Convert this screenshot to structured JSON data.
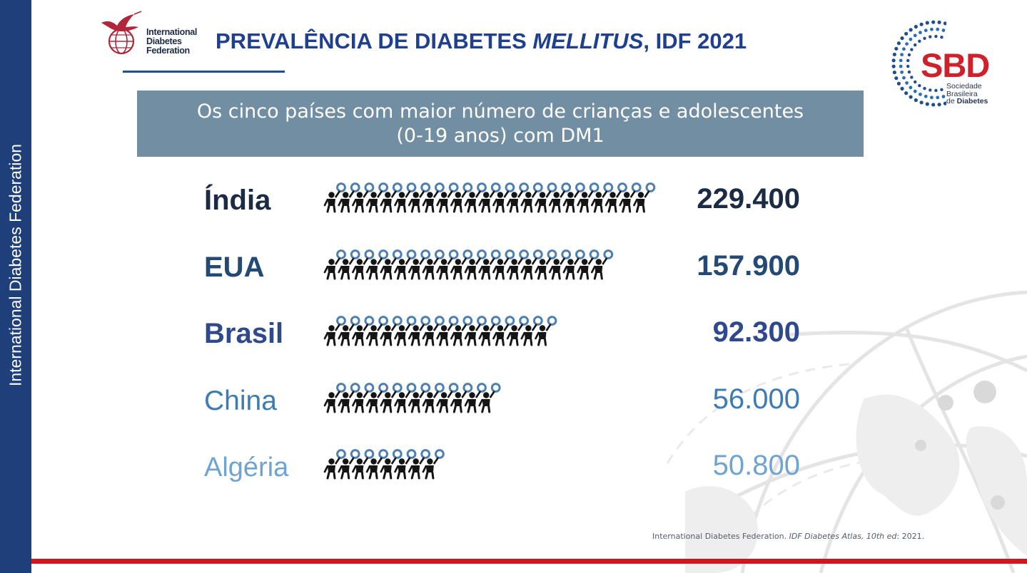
{
  "side_label": "International Diabetes Federation",
  "idf_logo": {
    "lines": [
      "International",
      "Diabetes",
      "Federation"
    ]
  },
  "title": {
    "main": "PREVALÊNCIA DE DIABETES ",
    "italic": "MELLITUS",
    "tail": ", IDF 2021"
  },
  "sbd_logo": {
    "acronym": "SBD",
    "lines": [
      "Sociedade",
      "Brasileira",
      "de "
    ],
    "bold_word": "Diabetes"
  },
  "banner": {
    "line1": "Os cinco países com maior número de crianças e adolescentes",
    "line2": "(0-19 anos) com DM1"
  },
  "chart_data": {
    "type": "bar",
    "style": "pictogram",
    "title": "Os cinco países com maior número de crianças e adolescentes (0-19 anos) com DM1",
    "categories": [
      "Índia",
      "EUA",
      "Brasil",
      "China",
      "Algéria"
    ],
    "values": [
      229400,
      157900,
      92300,
      56000,
      50800
    ],
    "value_labels": [
      "229.400",
      "157.900",
      "92.300",
      "56.000",
      "50.800"
    ],
    "icon_counts": [
      23,
      20,
      16,
      12,
      8
    ],
    "icon": "child-holding-balloon-icon",
    "colors": [
      "#1b2a45",
      "#234a74",
      "#2f4a8c",
      "#3d7bb4",
      "#6fa3d2"
    ],
    "icon_color": "#151515",
    "balloon_color": "#4d7fb0"
  },
  "source": {
    "text": "International Diabetes Federation. ",
    "italic": "IDF Diabetes Atlas, 10th ed",
    "tail": ": 2021."
  },
  "colors": {
    "navy_band": "#1f3f7a",
    "red_bar": "#d0161f",
    "banner_bg": "#728ea2",
    "title": "#1f3f8f",
    "sbd_red": "#d0212b"
  }
}
